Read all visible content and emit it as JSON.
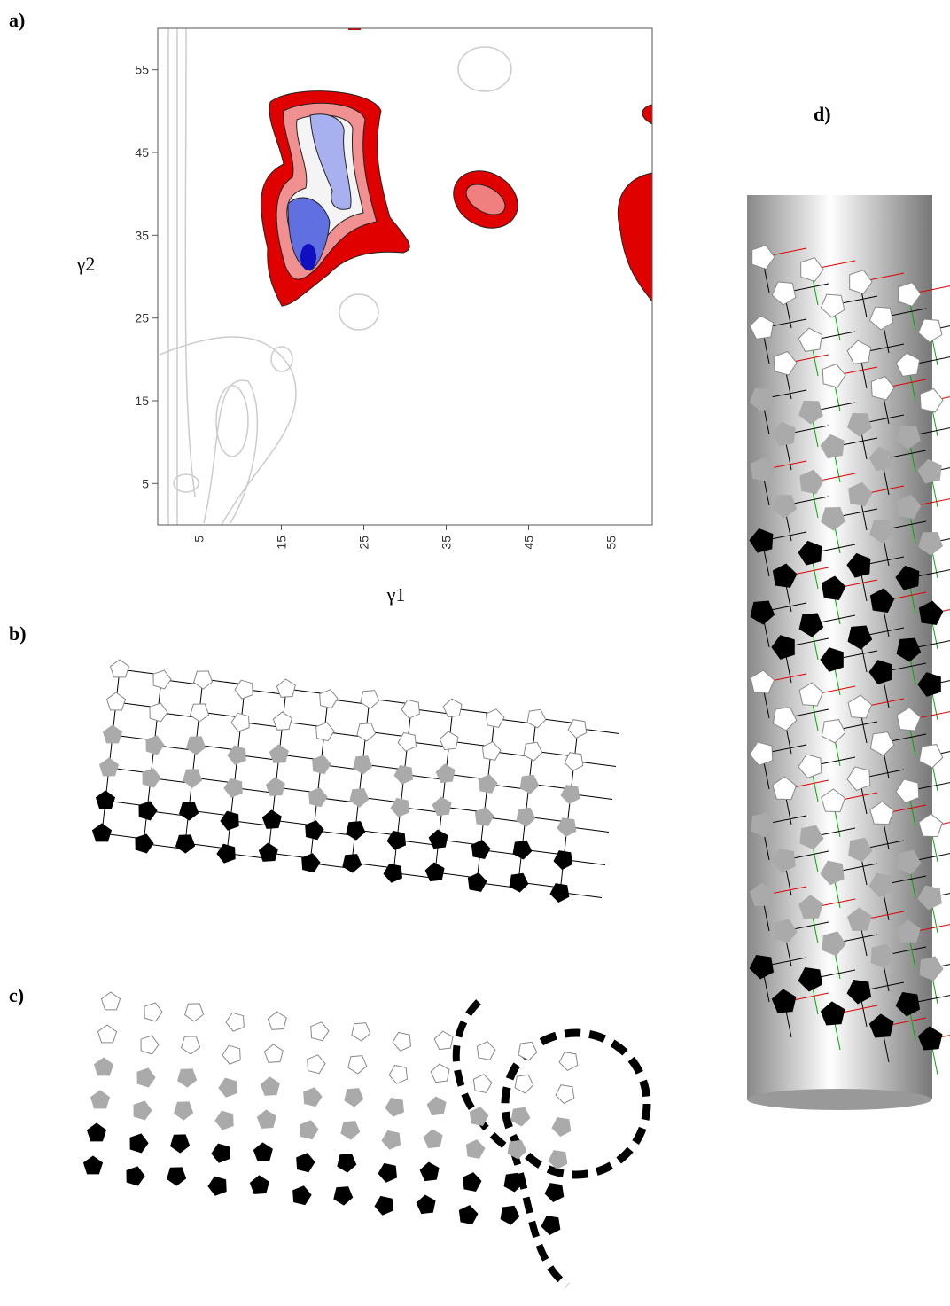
{
  "panels": {
    "a": "a)",
    "b": "b)",
    "c": "c)",
    "d": "d)"
  },
  "chart_data": {
    "type": "contour",
    "x_label": "γ1",
    "y_label": "γ2",
    "xlim": [
      0,
      60
    ],
    "ylim": [
      0,
      60
    ],
    "xticks": [
      5,
      15,
      25,
      35,
      45,
      55
    ],
    "yticks": [
      5,
      15,
      25,
      35,
      45,
      55
    ]
  }
}
